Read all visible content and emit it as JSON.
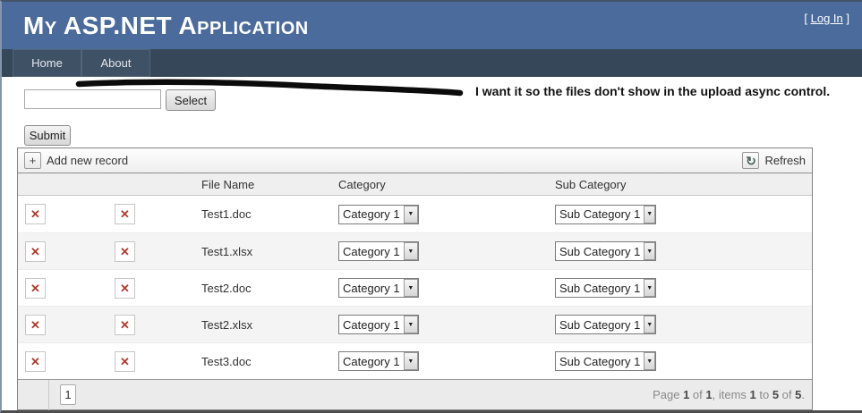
{
  "colors": {
    "header-blue": "#4a6b9c",
    "nav-dark": "#36475a",
    "tab-bg": "#3f5164",
    "tab-border": "#51647a",
    "grid-border": "#828282",
    "delete-red": "#b23a2b",
    "annotation-black": "#111111"
  },
  "masthead": {
    "title": "My ASP.NET Application",
    "login": {
      "open": "[ ",
      "link": "Log In",
      "close": " ]"
    }
  },
  "nav": {
    "items": [
      {
        "label": "Home"
      },
      {
        "label": "About"
      }
    ]
  },
  "upload": {
    "filename_value": "",
    "select_label": "Select",
    "submit_label": "Submit",
    "annotation": "I want it so the files don't show in the upload async control."
  },
  "grid": {
    "toolbar": {
      "add_icon": "+",
      "add_label": "Add new record",
      "refresh_icon": "↻",
      "refresh_label": "Refresh"
    },
    "columns": [
      "File Name",
      "Category",
      "Sub Category"
    ],
    "delete_icon": "✕",
    "dropdown_arrow": "▼",
    "rows": [
      {
        "file_name": "Test1.doc",
        "category": "Category 1",
        "sub_category": "Sub Category 1"
      },
      {
        "file_name": "Test1.xlsx",
        "category": "Category 1",
        "sub_category": "Sub Category 1"
      },
      {
        "file_name": "Test2.doc",
        "category": "Category 1",
        "sub_category": "Sub Category 1"
      },
      {
        "file_name": "Test2.xlsx",
        "category": "Category 1",
        "sub_category": "Sub Category 1"
      },
      {
        "file_name": "Test3.doc",
        "category": "Category 1",
        "sub_category": "Sub Category 1"
      }
    ],
    "pager": {
      "page_button": "1",
      "summary_parts": [
        {
          "text": "Page ",
          "strong": false
        },
        {
          "text": "1",
          "strong": true
        },
        {
          "text": " of ",
          "strong": false
        },
        {
          "text": "1",
          "strong": true
        },
        {
          "text": ", items ",
          "strong": false
        },
        {
          "text": "1",
          "strong": true
        },
        {
          "text": " to ",
          "strong": false
        },
        {
          "text": "5",
          "strong": true
        },
        {
          "text": " of ",
          "strong": false
        },
        {
          "text": "5",
          "strong": true
        },
        {
          "text": ".",
          "strong": false
        }
      ]
    }
  }
}
